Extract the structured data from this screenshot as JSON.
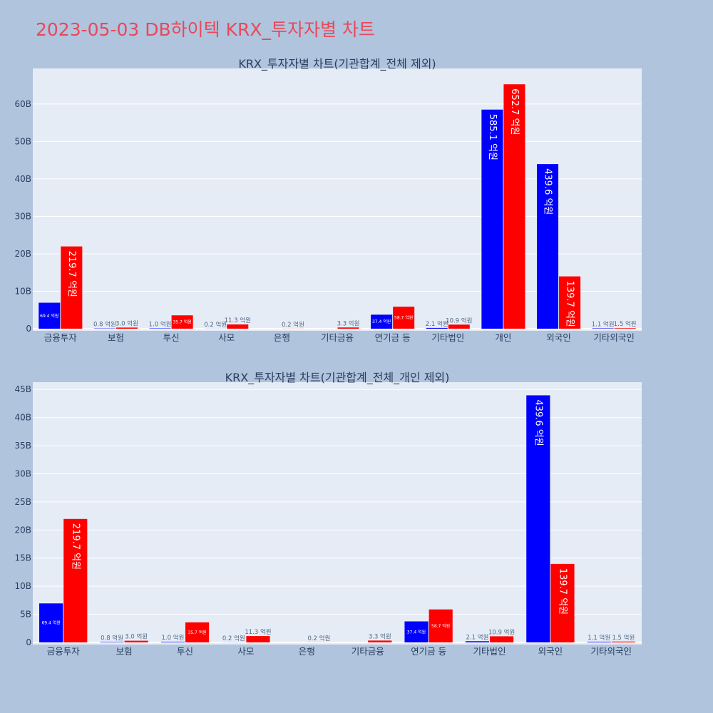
{
  "page_title": "2023-05-03 DB하이텍 KRX_투자자별 차트",
  "colors": {
    "series_a": "#0000ff",
    "series_b": "#ff0000",
    "plot_bg": "#e5ecf6",
    "page_bg": "#b0c4de",
    "title": "#e8485a"
  },
  "chart_data": [
    {
      "type": "bar",
      "title": "KRX_투자자별 차트(기관합계_전체 제외)",
      "categories": [
        "금융투자",
        "보험",
        "투신",
        "사모",
        "은행",
        "기타금융",
        "연기금 등",
        "기타법인",
        "개인",
        "외국인",
        "기타외국인"
      ],
      "series": [
        {
          "name": "series_a",
          "color": "#0000ff",
          "values": [
            6.94,
            0.08,
            0.1,
            0.02,
            0.0,
            0.0,
            3.74,
            0.21,
            58.51,
            43.96,
            0.11
          ],
          "labels": [
            "69.4 억원",
            "0.8 억원",
            "1.0 억원",
            "0.2 억원",
            "",
            "",
            "37.4 억원",
            "2.1 억원",
            "585.1 억원",
            "439.6 억원",
            "1.1 억원"
          ]
        },
        {
          "name": "series_b",
          "color": "#ff0000",
          "values": [
            21.97,
            0.3,
            3.57,
            1.13,
            0.02,
            0.33,
            5.87,
            1.09,
            65.27,
            13.97,
            0.15
          ],
          "labels": [
            "219.7 억원",
            "3.0 억원",
            "35.7 억원",
            "11.3 억원",
            "0.2 억원",
            "3.3 억원",
            "58.7 억원",
            "10.9 억원",
            "652.7 억원",
            "139.7 억원",
            "1.5 억원"
          ]
        }
      ],
      "yticks": [
        0,
        10,
        20,
        30,
        40,
        50,
        60
      ],
      "ytick_labels": [
        "0",
        "10B",
        "20B",
        "30B",
        "40B",
        "50B",
        "60B"
      ],
      "ylim": [
        0,
        69.5
      ]
    },
    {
      "type": "bar",
      "title": "KRX_투자자별 차트(기관합계_전체_개인 제외)",
      "categories": [
        "금융투자",
        "보험",
        "투신",
        "사모",
        "은행",
        "기타금융",
        "연기금 등",
        "기타법인",
        "외국인",
        "기타외국인"
      ],
      "series": [
        {
          "name": "series_a",
          "color": "#0000ff",
          "values": [
            6.94,
            0.08,
            0.1,
            0.02,
            0.0,
            0.0,
            3.74,
            0.21,
            43.96,
            0.11
          ],
          "labels": [
            "69.4 억원",
            "0.8 억원",
            "1.0 억원",
            "0.2 억원",
            "",
            "",
            "37.4 억원",
            "2.1 억원",
            "439.6 억원",
            "1.1 억원"
          ]
        },
        {
          "name": "series_b",
          "color": "#ff0000",
          "values": [
            21.97,
            0.3,
            3.57,
            1.13,
            0.02,
            0.33,
            5.87,
            1.09,
            13.97,
            0.15
          ],
          "labels": [
            "219.7 억원",
            "3.0 억원",
            "35.7 억원",
            "11.3 억원",
            "0.2 억원",
            "3.3 억원",
            "58.7 억원",
            "10.9 억원",
            "139.7 억원",
            "1.5 억원"
          ]
        }
      ],
      "yticks": [
        0,
        5,
        10,
        15,
        20,
        25,
        30,
        35,
        40,
        45
      ],
      "ytick_labels": [
        "0",
        "5B",
        "10B",
        "15B",
        "20B",
        "25B",
        "30B",
        "35B",
        "40B",
        "45B"
      ],
      "ylim": [
        0,
        46.3
      ]
    }
  ]
}
